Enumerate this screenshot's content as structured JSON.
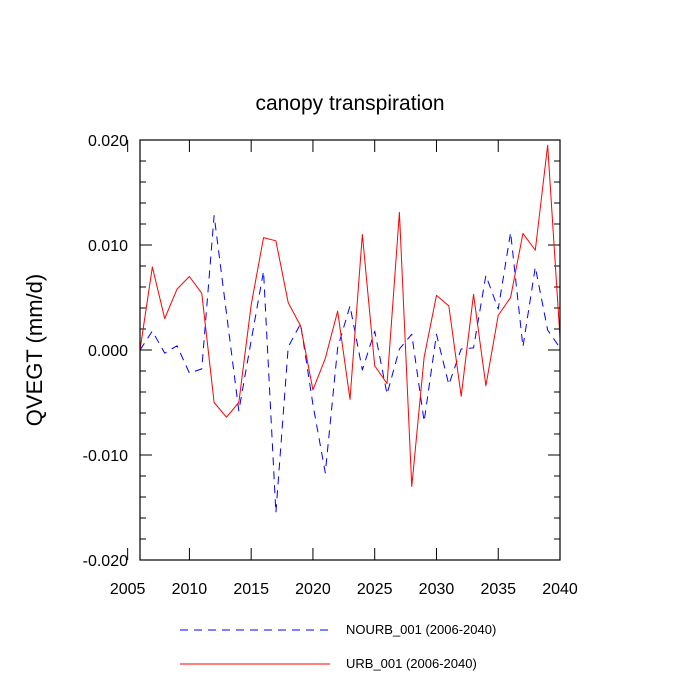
{
  "chart_data": {
    "type": "line",
    "title": "canopy transpiration",
    "xlabel": "",
    "ylabel": "QVEGT  (mm/d)",
    "xlim": [
      2006,
      2040
    ],
    "ylim": [
      -0.02,
      0.02
    ],
    "xticks": [
      2005,
      2010,
      2015,
      2020,
      2025,
      2030,
      2035,
      2040
    ],
    "xtick_labels": [
      "2005",
      "2010",
      "2015",
      "2020",
      "2025",
      "2030",
      "2035",
      "2040"
    ],
    "yticks": [
      -0.02,
      -0.01,
      0.0,
      0.01,
      0.02
    ],
    "ytick_labels": [
      "-0.020",
      "-0.010",
      "0.000",
      "0.010",
      "0.020"
    ],
    "grid": false,
    "legend_position": "bottom",
    "x": [
      2006,
      2007,
      2008,
      2009,
      2010,
      2011,
      2012,
      2013,
      2014,
      2015,
      2016,
      2017,
      2018,
      2019,
      2020,
      2021,
      2022,
      2023,
      2024,
      2025,
      2026,
      2027,
      2028,
      2029,
      2030,
      2031,
      2032,
      2033,
      2034,
      2035,
      2036,
      2037,
      2038,
      2039,
      2040
    ],
    "series": [
      {
        "name": "NOURB_001 (2006-2040)",
        "color": "#0000ff",
        "style": "dashed",
        "values": [
          0.0,
          0.0018,
          -0.0003,
          0.0004,
          -0.0022,
          -0.0018,
          0.0128,
          0.0035,
          -0.0058,
          0.0009,
          0.0075,
          -0.0155,
          0.0003,
          0.0025,
          -0.0052,
          -0.0117,
          0.0002,
          0.0042,
          -0.0019,
          0.0018,
          -0.0042,
          0.0001,
          0.0015,
          -0.0068,
          0.0015,
          -0.0033,
          0.0001,
          0.0002,
          0.0071,
          0.0039,
          0.0112,
          0.0003,
          0.0079,
          0.0019,
          0.0002
        ]
      },
      {
        "name": "URB_001 (2006-2040)",
        "color": "#ff0000",
        "style": "solid",
        "values": [
          0.0,
          0.0079,
          0.003,
          0.0058,
          0.007,
          0.0054,
          -0.005,
          -0.0064,
          -0.005,
          0.0043,
          0.0107,
          0.0104,
          0.0045,
          0.0023,
          -0.0038,
          -0.0008,
          0.0037,
          -0.0047,
          0.011,
          -0.0015,
          -0.0032,
          0.0131,
          -0.013,
          -0.0007,
          0.0052,
          0.0042,
          -0.0044,
          0.0053,
          -0.0034,
          0.0033,
          0.005,
          0.0111,
          0.0095,
          0.0195,
          0.0012
        ]
      }
    ]
  }
}
